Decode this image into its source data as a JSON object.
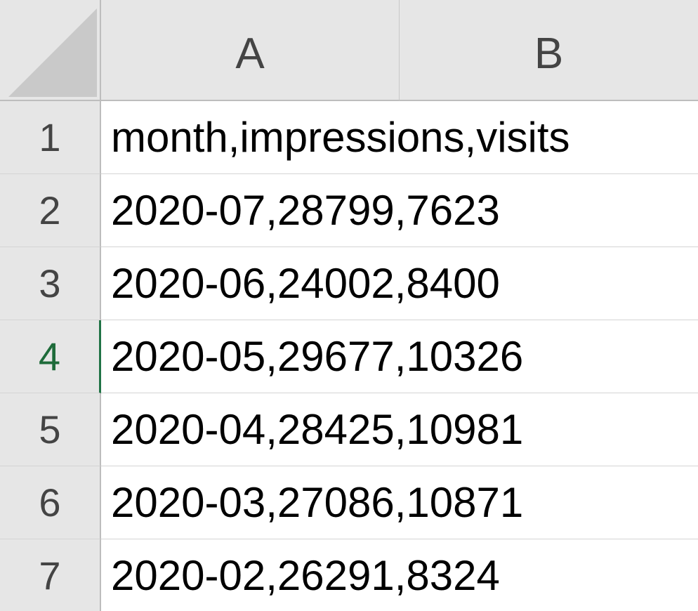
{
  "columns": [
    {
      "label": "A"
    },
    {
      "label": "B"
    }
  ],
  "rows": [
    {
      "number": "1",
      "cell_a": "month,impressions,visits"
    },
    {
      "number": "2",
      "cell_a": "2020-07,28799,7623"
    },
    {
      "number": "3",
      "cell_a": "2020-06,24002,8400"
    },
    {
      "number": "4",
      "cell_a": "2020-05,29677,10326"
    },
    {
      "number": "5",
      "cell_a": "2020-04,28425,10981"
    },
    {
      "number": "6",
      "cell_a": "2020-03,27086,10871"
    },
    {
      "number": "7",
      "cell_a": "2020-02,26291,8324"
    }
  ],
  "selected_row": "4",
  "colors": {
    "header_bg": "#e6e6e6",
    "selection_accent": "#217346"
  }
}
